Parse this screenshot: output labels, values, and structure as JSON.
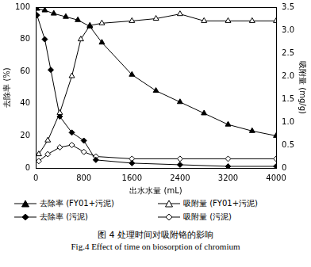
{
  "chart_data": {
    "type": "line",
    "title": "图 4  处理时间对吸附铬的影响",
    "subtitle": "Fig.4  Effect of time on biosorption of chromium",
    "x_label": "出水水量 (mL)",
    "y_label": "去除率 (%)",
    "y2_label": "吸附量 (mg/g)",
    "xlim": [
      0,
      4000
    ],
    "xticks": [
      0,
      800,
      1600,
      2400,
      3200,
      4000
    ],
    "ylim": [
      0,
      100
    ],
    "yticks": [
      0,
      20,
      40,
      60,
      80,
      100
    ],
    "y2lim": [
      0,
      3.5
    ],
    "y2ticks": [
      0,
      0.5,
      {
        "value": 1,
        "label": "1.0"
      },
      1.5,
      {
        "value": 2,
        "label": "2.0"
      },
      2.5,
      {
        "value": 3,
        "label": "3.0"
      },
      3.5
    ],
    "grid": false,
    "legend": "bottom",
    "series": [
      {
        "name": "去除率 (FY01+污泥)",
        "color": "#000000",
        "marker": "triangle",
        "axis": "y",
        "x": [
          20,
          150,
          300,
          500,
          700,
          900,
          1100,
          1600,
          2000,
          2400,
          2800,
          3200,
          3600,
          4000
        ],
        "values": [
          99,
          98,
          96,
          94,
          92,
          88,
          78,
          58,
          48,
          41,
          34,
          27,
          23,
          20
        ]
      },
      {
        "name": "吸附量 (FY01+污泥)",
        "color": "#000000",
        "marker": "triangle-open",
        "axis": "y2",
        "x": [
          50,
          200,
          400,
          600,
          750,
          900,
          1100,
          1600,
          2000,
          2400,
          2800,
          3200,
          3600,
          4000
        ],
        "values": [
          0.3,
          0.6,
          1.2,
          2.0,
          2.8,
          3.1,
          3.15,
          3.2,
          3.25,
          3.35,
          3.2,
          3.2,
          3.2,
          3.2
        ]
      },
      {
        "name": "去除率 (污泥)",
        "color": "#000000",
        "marker": "diamond",
        "axis": "y",
        "x": [
          20,
          150,
          250,
          400,
          600,
          800,
          1000,
          1600,
          2400,
          3200,
          4000
        ],
        "values": [
          95,
          80,
          61,
          32,
          22,
          17,
          5,
          3,
          2,
          1,
          1
        ]
      },
      {
        "name": "吸附量 (污泥)",
        "color": "#000000",
        "marker": "diamond-open",
        "axis": "y2",
        "x": [
          50,
          200,
          400,
          600,
          800,
          1000,
          1600,
          2400,
          3200,
          4000
        ],
        "values": [
          0.15,
          0.3,
          0.45,
          0.5,
          0.35,
          0.25,
          0.2,
          0.2,
          0.2,
          0.2
        ]
      }
    ]
  }
}
